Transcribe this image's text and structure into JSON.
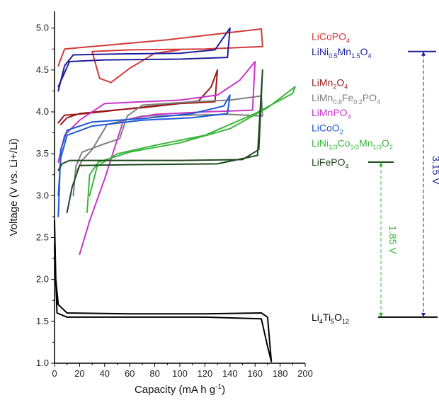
{
  "chart_data": {
    "type": "line",
    "xlabel": "Capacity (mA h g-1)",
    "xlabel_main": "Capacity (mA h g",
    "xlabel_sup": "-1",
    "xlabel_end": ")",
    "ylabel": "Voltage (V vs. Li+/Li)",
    "xlim": [
      0,
      200
    ],
    "ylim": [
      1.0,
      5.2
    ],
    "x_ticks": [
      "0",
      "20",
      "40",
      "60",
      "80",
      "100",
      "120",
      "140",
      "160",
      "180",
      "200"
    ],
    "y_ticks": [
      "1.0",
      "1.5",
      "2.0",
      "2.5",
      "3.0",
      "3.5",
      "4.0",
      "4.5",
      "5.0"
    ],
    "grid": false,
    "series": [
      {
        "name": "LiCoPO4",
        "color": "#d23a3a",
        "points": [
          [
            3,
            4.55
          ],
          [
            8,
            4.75
          ],
          [
            30,
            4.78
          ],
          [
            60,
            4.82
          ],
          [
            90,
            4.86
          ],
          [
            130,
            4.93
          ],
          [
            165,
            4.99
          ],
          [
            166,
            4.78
          ],
          [
            120,
            4.75
          ],
          [
            60,
            4.74
          ],
          [
            30,
            4.72
          ],
          [
            36,
            4.4
          ],
          [
            45,
            4.35
          ],
          [
            60,
            4.52
          ],
          [
            80,
            4.7
          ],
          [
            100,
            4.74
          ]
        ]
      },
      {
        "name": "LiNi0.5Mn1.5O4",
        "color": "#1e1e9a",
        "points": [
          [
            3,
            4.25
          ],
          [
            8,
            4.55
          ],
          [
            15,
            4.68
          ],
          [
            50,
            4.69
          ],
          [
            100,
            4.7
          ],
          [
            128,
            4.74
          ],
          [
            140,
            5.0
          ],
          [
            138,
            4.65
          ],
          [
            100,
            4.63
          ],
          [
            40,
            4.62
          ],
          [
            12,
            4.6
          ],
          [
            6,
            4.4
          ],
          [
            3,
            4.3
          ]
        ]
      },
      {
        "name": "LiMn2O4",
        "color": "#9a1a1a",
        "points": [
          [
            3,
            3.87
          ],
          [
            8,
            3.96
          ],
          [
            25,
            3.98
          ],
          [
            55,
            4.03
          ],
          [
            85,
            4.08
          ],
          [
            115,
            4.13
          ],
          [
            125,
            4.3
          ],
          [
            130,
            4.5
          ],
          [
            128,
            4.12
          ],
          [
            100,
            4.1
          ],
          [
            70,
            4.05
          ],
          [
            40,
            4.01
          ],
          [
            20,
            3.98
          ],
          [
            10,
            3.93
          ],
          [
            5,
            3.85
          ]
        ]
      },
      {
        "name": "LiMn0.8Fe0.2PO4",
        "color": "#808080",
        "points": [
          [
            15,
            3.0
          ],
          [
            17,
            3.35
          ],
          [
            22,
            3.52
          ],
          [
            40,
            3.62
          ],
          [
            52,
            3.68
          ],
          [
            58,
            3.95
          ],
          [
            70,
            4.08
          ],
          [
            110,
            4.12
          ],
          [
            140,
            4.14
          ],
          [
            165,
            4.19
          ],
          [
            166,
            3.95
          ],
          [
            140,
            3.97
          ],
          [
            70,
            3.95
          ],
          [
            42,
            3.85
          ],
          [
            30,
            3.55
          ],
          [
            22,
            3.42
          ],
          [
            18,
            3.3
          ]
        ]
      },
      {
        "name": "LiMnPO4",
        "color": "#c637c6",
        "points": [
          [
            3,
            3.4
          ],
          [
            8,
            3.72
          ],
          [
            20,
            3.9
          ],
          [
            40,
            4.1
          ],
          [
            70,
            4.12
          ],
          [
            100,
            4.14
          ],
          [
            130,
            4.2
          ],
          [
            148,
            4.38
          ],
          [
            160,
            4.6
          ],
          [
            158,
            4.02
          ],
          [
            120,
            4.0
          ],
          [
            80,
            3.97
          ],
          [
            55,
            3.9
          ],
          [
            40,
            3.2
          ],
          [
            28,
            2.7
          ],
          [
            20,
            2.3
          ]
        ]
      },
      {
        "name": "LiCoO2",
        "color": "#1f5ad6",
        "points": [
          [
            3,
            2.75
          ],
          [
            5,
            3.55
          ],
          [
            10,
            3.78
          ],
          [
            30,
            3.88
          ],
          [
            70,
            3.92
          ],
          [
            110,
            3.98
          ],
          [
            135,
            4.07
          ],
          [
            140,
            4.2
          ],
          [
            138,
            3.98
          ],
          [
            110,
            3.93
          ],
          [
            70,
            3.9
          ],
          [
            30,
            3.83
          ],
          [
            10,
            3.72
          ],
          [
            5,
            3.45
          ],
          [
            3,
            3.0
          ]
        ]
      },
      {
        "name": "LiNi1/3Co1/3Mn1/3O2",
        "color": "#3db53d",
        "points": [
          [
            26,
            2.8
          ],
          [
            28,
            3.25
          ],
          [
            35,
            3.4
          ],
          [
            60,
            3.52
          ],
          [
            100,
            3.63
          ],
          [
            140,
            3.8
          ],
          [
            170,
            4.05
          ],
          [
            192,
            4.3
          ],
          [
            190,
            4.22
          ],
          [
            160,
            3.98
          ],
          [
            120,
            3.72
          ],
          [
            80,
            3.6
          ],
          [
            50,
            3.5
          ],
          [
            34,
            3.35
          ],
          [
            28,
            3.0
          ]
        ]
      },
      {
        "name": "LiFePO4",
        "color": "#1f4a1f",
        "points": [
          [
            3,
            3.3
          ],
          [
            6,
            3.38
          ],
          [
            12,
            3.42
          ],
          [
            50,
            3.42
          ],
          [
            100,
            3.42
          ],
          [
            150,
            3.43
          ],
          [
            163,
            3.55
          ],
          [
            166,
            4.5
          ],
          [
            162,
            3.48
          ],
          [
            130,
            3.38
          ],
          [
            60,
            3.37
          ],
          [
            20,
            3.36
          ],
          [
            14,
            3.1
          ],
          [
            10,
            2.8
          ]
        ]
      },
      {
        "name": "Li4Ti5O12",
        "color": "#000000",
        "points": [
          [
            0,
            2.7
          ],
          [
            1,
            2.0
          ],
          [
            3,
            1.7
          ],
          [
            10,
            1.6
          ],
          [
            60,
            1.59
          ],
          [
            120,
            1.59
          ],
          [
            165,
            1.6
          ],
          [
            170,
            1.55
          ],
          [
            173,
            1.02
          ],
          [
            170,
            1.2
          ],
          [
            165,
            1.53
          ],
          [
            120,
            1.55
          ],
          [
            60,
            1.55
          ],
          [
            10,
            1.55
          ],
          [
            2,
            1.6
          ],
          [
            0,
            2.4
          ]
        ]
      }
    ],
    "legend": [
      {
        "main": "LiCoPO",
        "sub": "4",
        "tail": "",
        "color": "#d23a3a",
        "v": 4.9
      },
      {
        "main": "LiNi",
        "sub": "0.5",
        "tail": "Mn",
        "sub2": "1.5",
        "tail2": "O",
        "sub3": "4",
        "color": "#1e1e9a",
        "v": 4.72
      },
      {
        "main": "LiMn",
        "sub": "2",
        "tail": "O",
        "sub2": "4",
        "color": "#9a1a1a",
        "v": 4.35
      },
      {
        "main": "LiMn",
        "sub": "0.8",
        "tail": "Fe",
        "sub2": "0.2",
        "tail2": "PO",
        "sub3": "4",
        "color": "#808080",
        "v": 4.17
      },
      {
        "main": "LiMnPO",
        "sub": "4",
        "tail": "",
        "color": "#c637c6",
        "v": 3.99
      },
      {
        "main": "LiCoO",
        "sub": "2",
        "tail": "",
        "color": "#1f5ad6",
        "v": 3.81
      },
      {
        "main": "LiNi",
        "sub": "1/3",
        "tail": "Co",
        "sub2": "1/3",
        "tail2": "Mn",
        "sub3": "1/3",
        "tail3": "O",
        "sub4": "2",
        "color": "#3db53d",
        "v": 3.63
      },
      {
        "main": "LiFePO",
        "sub": "4",
        "tail": "",
        "color": "#1f4a1f",
        "v": 3.4
      },
      {
        "main": "Li",
        "sub": "4",
        "tail": "Ti",
        "sub2": "5",
        "tail2": "O",
        "sub3": "12",
        "color": "#000000",
        "v": 1.55
      }
    ],
    "annotations": [
      {
        "text": "3.15 V",
        "color": "#1e1e9a",
        "from": 4.72,
        "to": 1.55
      },
      {
        "text": "1.85 V",
        "color": "#3db53d",
        "from": 3.4,
        "to": 1.55
      }
    ]
  }
}
